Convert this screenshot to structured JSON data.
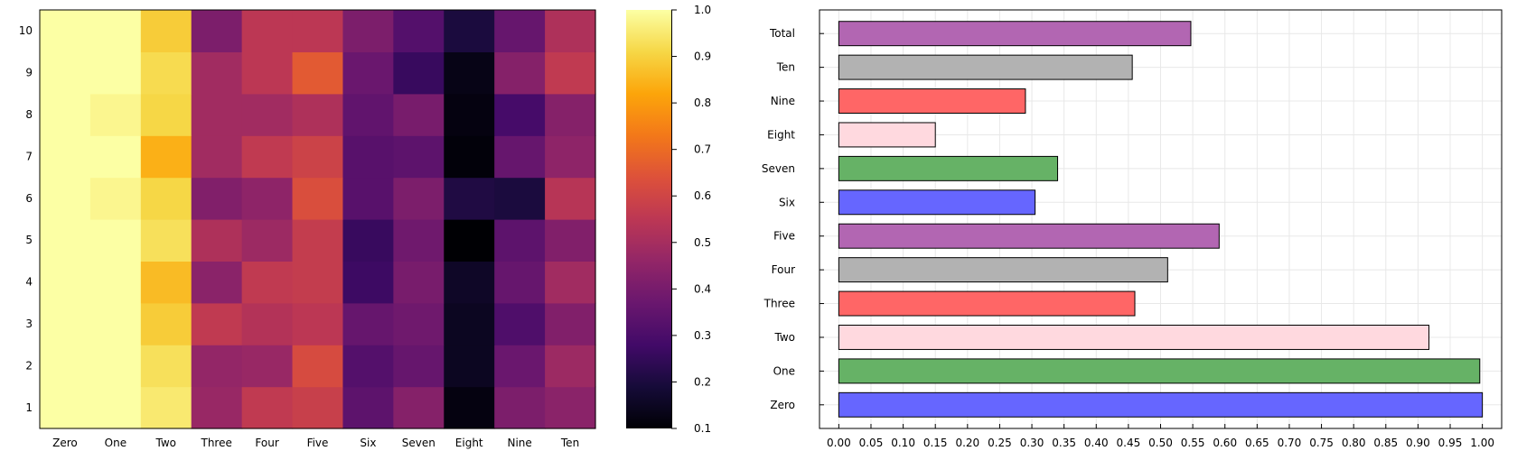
{
  "chart_data": [
    {
      "type": "heatmap",
      "title": "",
      "xlabel": "",
      "ylabel": "",
      "x": [
        "Zero",
        "One",
        "Two",
        "Three",
        "Four",
        "Five",
        "Six",
        "Seven",
        "Eight",
        "Nine",
        "Ten"
      ],
      "y": [
        "1",
        "2",
        "3",
        "4",
        "5",
        "6",
        "7",
        "8",
        "9",
        "10"
      ],
      "z": [
        [
          1.0,
          1.0,
          0.95,
          0.47,
          0.56,
          0.58,
          0.34,
          0.43,
          0.12,
          0.41,
          0.44
        ],
        [
          1.0,
          1.0,
          0.93,
          0.46,
          0.47,
          0.62,
          0.32,
          0.36,
          0.15,
          0.37,
          0.48
        ],
        [
          1.0,
          1.0,
          0.89,
          0.56,
          0.53,
          0.55,
          0.36,
          0.38,
          0.15,
          0.31,
          0.42
        ],
        [
          1.0,
          1.0,
          0.86,
          0.44,
          0.56,
          0.57,
          0.27,
          0.4,
          0.16,
          0.36,
          0.49
        ],
        [
          1.0,
          1.0,
          0.93,
          0.52,
          0.48,
          0.57,
          0.26,
          0.38,
          0.1,
          0.34,
          0.42
        ],
        [
          1.0,
          0.98,
          0.91,
          0.42,
          0.45,
          0.63,
          0.33,
          0.41,
          0.21,
          0.2,
          0.54
        ],
        [
          1.0,
          1.0,
          0.84,
          0.49,
          0.56,
          0.59,
          0.33,
          0.34,
          0.11,
          0.36,
          0.45
        ],
        [
          1.0,
          0.98,
          0.91,
          0.49,
          0.49,
          0.52,
          0.35,
          0.4,
          0.12,
          0.29,
          0.43
        ],
        [
          1.0,
          1.0,
          0.92,
          0.49,
          0.55,
          0.66,
          0.37,
          0.26,
          0.13,
          0.43,
          0.56
        ],
        [
          1.0,
          1.0,
          0.89,
          0.41,
          0.55,
          0.55,
          0.41,
          0.32,
          0.2,
          0.36,
          0.52
        ]
      ],
      "colorbar": {
        "colormap": "inferno",
        "min": 0.1,
        "max": 1.0,
        "ticks": [
          "0.1",
          "0.2",
          "0.3",
          "0.4",
          "0.5",
          "0.6",
          "0.7",
          "0.8",
          "0.9",
          "1.0"
        ]
      },
      "grid": false
    },
    {
      "type": "bar",
      "orientation": "horizontal",
      "title": "",
      "xlabel": "",
      "ylabel": "",
      "categories": [
        "Zero",
        "One",
        "Two",
        "Three",
        "Four",
        "Five",
        "Six",
        "Seven",
        "Eight",
        "Nine",
        "Ten",
        "Total"
      ],
      "values": [
        1.0,
        0.996,
        0.917,
        0.46,
        0.511,
        0.591,
        0.305,
        0.34,
        0.15,
        0.29,
        0.456,
        0.547
      ],
      "colors": [
        "#6666ff",
        "#66b266",
        "#ffd9df",
        "#ff6666",
        "#b2b2b2",
        "#b266b2",
        "#6666ff",
        "#66b266",
        "#ffd9df",
        "#ff6666",
        "#b2b2b2",
        "#b266b2"
      ],
      "xlim": [
        -0.03,
        1.03
      ],
      "xticks": [
        "0.00",
        "0.05",
        "0.10",
        "0.15",
        "0.20",
        "0.25",
        "0.30",
        "0.35",
        "0.40",
        "0.45",
        "0.50",
        "0.55",
        "0.60",
        "0.65",
        "0.70",
        "0.75",
        "0.80",
        "0.85",
        "0.90",
        "0.95",
        "1.00"
      ],
      "grid": true,
      "legend": "none"
    }
  ]
}
